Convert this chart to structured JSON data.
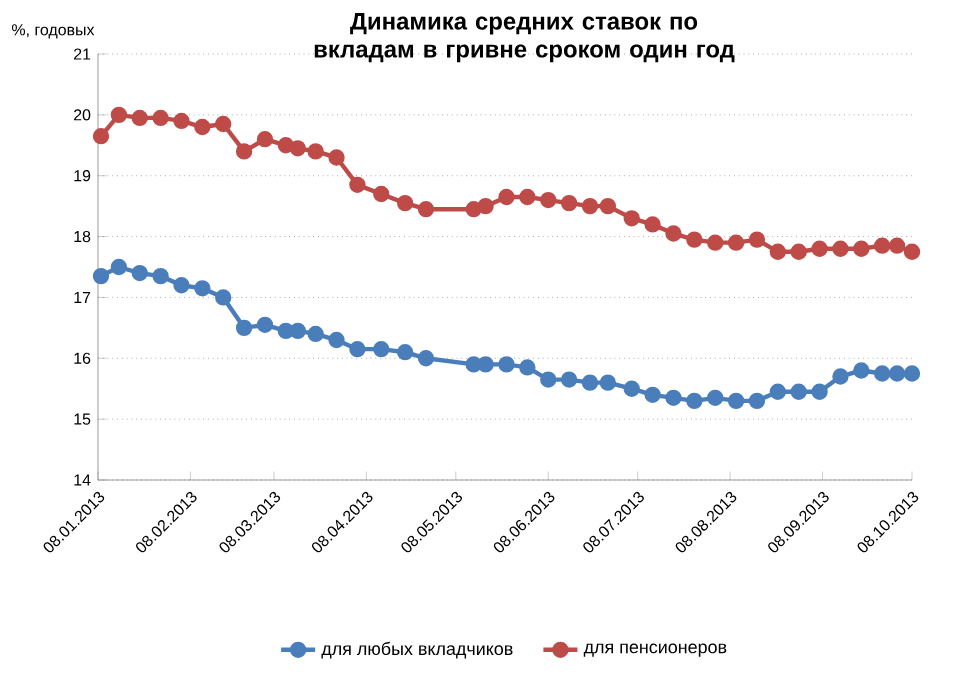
{
  "chart_data": {
    "type": "line",
    "title": "Динамика средних ставок по вкладам в гривне сроком один год",
    "ylabel": "%, годовых",
    "x": [
      "2013-01-09",
      "2013-01-15",
      "2013-01-22",
      "2013-01-29",
      "2013-02-05",
      "2013-02-12",
      "2013-02-19",
      "2013-02-26",
      "2013-03-05",
      "2013-03-12",
      "2013-03-16",
      "2013-03-22",
      "2013-03-29",
      "2013-04-05",
      "2013-04-13",
      "2013-04-21",
      "2013-04-28",
      "2013-05-14",
      "2013-05-18",
      "2013-05-25",
      "2013-06-01",
      "2013-06-08",
      "2013-06-15",
      "2013-06-22",
      "2013-06-28",
      "2013-07-06",
      "2013-07-13",
      "2013-07-20",
      "2013-07-27",
      "2013-08-03",
      "2013-08-10",
      "2013-08-17",
      "2013-08-24",
      "2013-08-31",
      "2013-09-07",
      "2013-09-14",
      "2013-09-21",
      "2013-09-28",
      "2013-10-03",
      "2013-10-08"
    ],
    "series": [
      {
        "name": "для любых вкладчиков",
        "color": "#4a7ebb",
        "values": [
          17.35,
          17.5,
          17.4,
          17.35,
          17.2,
          17.15,
          17.0,
          16.5,
          16.55,
          16.45,
          16.45,
          16.4,
          16.3,
          16.15,
          16.15,
          16.1,
          16.0,
          15.9,
          15.9,
          15.9,
          15.85,
          15.65,
          15.65,
          15.6,
          15.6,
          15.5,
          15.4,
          15.35,
          15.3,
          15.35,
          15.3,
          15.3,
          15.45,
          15.45,
          15.45,
          15.7,
          15.8,
          15.75,
          15.75,
          15.75
        ]
      },
      {
        "name": "для пенсионеров",
        "color": "#be4b48",
        "values": [
          19.65,
          20.0,
          19.95,
          19.95,
          19.9,
          19.8,
          19.85,
          19.4,
          19.6,
          19.5,
          19.45,
          19.4,
          19.3,
          18.85,
          18.7,
          18.55,
          18.45,
          18.45,
          18.5,
          18.65,
          18.65,
          18.6,
          18.55,
          18.5,
          18.5,
          18.3,
          18.2,
          18.05,
          17.95,
          17.9,
          17.9,
          17.95,
          17.75,
          17.75,
          17.8,
          17.8,
          17.8,
          17.85,
          17.85,
          17.75
        ]
      }
    ],
    "xlim": [
      "2013-01-08",
      "2013-10-08"
    ],
    "xticks": [
      {
        "value": "2013-01-08",
        "label": "08.01.2013"
      },
      {
        "value": "2013-02-08",
        "label": "08.02.2013"
      },
      {
        "value": "2013-03-08",
        "label": "08.03.2013"
      },
      {
        "value": "2013-04-08",
        "label": "08.04.2013"
      },
      {
        "value": "2013-05-08",
        "label": "08.05.2013"
      },
      {
        "value": "2013-06-08",
        "label": "08.06.2013"
      },
      {
        "value": "2013-07-08",
        "label": "08.07.2013"
      },
      {
        "value": "2013-08-08",
        "label": "08.08.2013"
      },
      {
        "value": "2013-09-08",
        "label": "08.09.2013"
      },
      {
        "value": "2013-10-08",
        "label": "08.10.2013"
      }
    ],
    "ylim": [
      14,
      21
    ],
    "yticks": [
      14,
      15,
      16,
      17,
      18,
      19,
      20,
      21
    ],
    "grid": "y",
    "legend": "bottom",
    "marker": "circle",
    "line_style": "solid"
  }
}
